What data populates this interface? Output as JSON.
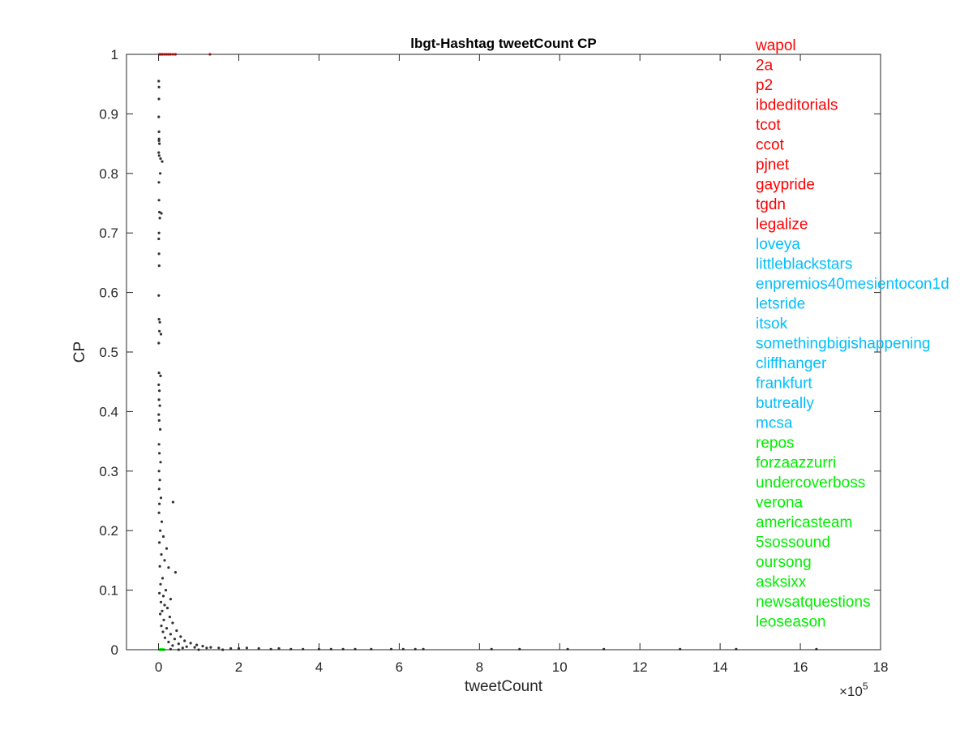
{
  "chart_data": {
    "type": "scatter",
    "title": "lbgt-Hashtag tweetCount CP",
    "xlabel": "tweetCount",
    "ylabel": "CP",
    "x_multiplier": "×10",
    "x_exponent": "5",
    "xlim": [
      -0.8,
      18
    ],
    "ylim": [
      0,
      1
    ],
    "x_ticks": [
      "0",
      "2",
      "4",
      "6",
      "8",
      "10",
      "12",
      "14",
      "16",
      "18"
    ],
    "y_ticks": [
      "0",
      "0.1",
      "0.2",
      "0.3",
      "0.4",
      "0.5",
      "0.6",
      "0.7",
      "0.8",
      "0.9",
      "1"
    ],
    "grid": false,
    "series": [
      {
        "color": "#333333",
        "points": [
          [
            0.005,
            0.955
          ],
          [
            0.01,
            0.945
          ],
          [
            0.008,
            0.925
          ],
          [
            0.005,
            0.895
          ],
          [
            0.01,
            0.87
          ],
          [
            0.012,
            0.858
          ],
          [
            0.01,
            0.855
          ],
          [
            0.02,
            0.85
          ],
          [
            0.005,
            0.835
          ],
          [
            0.015,
            0.83
          ],
          [
            0.05,
            0.825
          ],
          [
            0.09,
            0.82
          ],
          [
            0.04,
            0.8
          ],
          [
            0.008,
            0.785
          ],
          [
            0.01,
            0.755
          ],
          [
            0.02,
            0.735
          ],
          [
            0.07,
            0.733
          ],
          [
            0.03,
            0.725
          ],
          [
            0.01,
            0.7
          ],
          [
            0.005,
            0.69
          ],
          [
            0.01,
            0.665
          ],
          [
            0.015,
            0.645
          ],
          [
            0.005,
            0.595
          ],
          [
            0.01,
            0.555
          ],
          [
            0.03,
            0.55
          ],
          [
            0.02,
            0.535
          ],
          [
            0.06,
            0.53
          ],
          [
            0.005,
            0.515
          ],
          [
            0.01,
            0.465
          ],
          [
            0.05,
            0.46
          ],
          [
            0.005,
            0.445
          ],
          [
            0.02,
            0.435
          ],
          [
            0.01,
            0.42
          ],
          [
            0.03,
            0.41
          ],
          [
            0.005,
            0.395
          ],
          [
            0.015,
            0.385
          ],
          [
            0.04,
            0.37
          ],
          [
            0.01,
            0.345
          ],
          [
            0.02,
            0.33
          ],
          [
            0.05,
            0.315
          ],
          [
            0.01,
            0.3
          ],
          [
            0.03,
            0.285
          ],
          [
            0.015,
            0.27
          ],
          [
            0.06,
            0.255
          ],
          [
            0.02,
            0.245
          ],
          [
            0.36,
            0.248
          ],
          [
            0.01,
            0.23
          ],
          [
            0.08,
            0.215
          ],
          [
            0.04,
            0.2
          ],
          [
            0.12,
            0.19
          ],
          [
            0.02,
            0.18
          ],
          [
            0.2,
            0.17
          ],
          [
            0.07,
            0.16
          ],
          [
            0.15,
            0.15
          ],
          [
            0.03,
            0.14
          ],
          [
            0.42,
            0.13
          ],
          [
            0.25,
            0.138
          ],
          [
            0.1,
            0.12
          ],
          [
            0.05,
            0.11
          ],
          [
            0.18,
            0.1
          ],
          [
            0.02,
            0.095
          ],
          [
            0.12,
            0.09
          ],
          [
            0.3,
            0.085
          ],
          [
            0.06,
            0.08
          ],
          [
            0.15,
            0.075
          ],
          [
            0.22,
            0.07
          ],
          [
            0.09,
            0.065
          ],
          [
            0.04,
            0.06
          ],
          [
            0.28,
            0.055
          ],
          [
            0.13,
            0.05
          ],
          [
            0.35,
            0.045
          ],
          [
            0.07,
            0.04
          ],
          [
            0.2,
            0.036
          ],
          [
            0.45,
            0.032
          ],
          [
            0.11,
            0.03
          ],
          [
            0.3,
            0.026
          ],
          [
            0.55,
            0.022
          ],
          [
            0.16,
            0.02
          ],
          [
            0.4,
            0.018
          ],
          [
            0.65,
            0.015
          ],
          [
            0.25,
            0.013
          ],
          [
            0.8,
            0.011
          ],
          [
            0.5,
            0.01
          ],
          [
            0.95,
            0.008
          ],
          [
            0.35,
            0.007
          ],
          [
            1.1,
            0.006
          ],
          [
            0.7,
            0.005
          ],
          [
            1.3,
            0.004
          ],
          [
            0.9,
            0.004
          ],
          [
            1.5,
            0.003
          ],
          [
            1.2,
            0.003
          ],
          [
            1.8,
            0.002
          ],
          [
            2.0,
            0.002
          ],
          [
            2.2,
            0.003
          ],
          [
            2.5,
            0.002
          ],
          [
            2.8,
            0.001
          ],
          [
            3.0,
            0.002
          ],
          [
            3.3,
            0.001
          ],
          [
            3.6,
            0.001
          ],
          [
            4.0,
            0.001
          ],
          [
            4.3,
            0.001
          ],
          [
            4.6,
            0.001
          ],
          [
            4.9,
            0.001
          ],
          [
            5.3,
            0.001
          ],
          [
            5.8,
            0.001
          ],
          [
            6.1,
            0.001
          ],
          [
            6.4,
            0.001
          ],
          [
            6.6,
            0.001
          ],
          [
            8.3,
            0.001
          ],
          [
            9.0,
            0.001
          ],
          [
            10.2,
            0.001
          ],
          [
            11.1,
            0.001
          ],
          [
            13.0,
            0.001
          ],
          [
            14.4,
            0.001
          ],
          [
            16.4,
            0.001
          ],
          [
            0.5,
            0.0
          ],
          [
            1.0,
            0.0
          ],
          [
            1.6,
            0.0
          ],
          [
            0.3,
            0.001
          ],
          [
            0.6,
            0.003
          ]
        ]
      },
      {
        "color": "#ff0000",
        "points": [
          [
            0.02,
            1.0
          ],
          [
            0.06,
            1.0
          ],
          [
            0.1,
            1.0
          ],
          [
            0.15,
            1.0
          ],
          [
            0.2,
            1.0
          ],
          [
            0.25,
            1.0
          ],
          [
            0.3,
            1.0
          ],
          [
            0.36,
            1.0
          ],
          [
            0.42,
            1.0
          ],
          [
            1.28,
            1.0
          ]
        ]
      },
      {
        "color": "#00ff00",
        "points": [
          [
            0.02,
            0.0
          ],
          [
            0.05,
            0.0
          ],
          [
            0.08,
            0.0
          ],
          [
            0.1,
            0.001
          ],
          [
            0.12,
            0.0
          ],
          [
            0.14,
            0.0
          ],
          [
            0.06,
            0.001
          ],
          [
            0.09,
            0.0
          ],
          [
            0.11,
            0.0
          ],
          [
            0.04,
            0.0
          ]
        ]
      }
    ],
    "annotations": [
      {
        "text": "wapol",
        "color": "#ff0000"
      },
      {
        "text": "2a",
        "color": "#ff0000"
      },
      {
        "text": "p2",
        "color": "#ff0000"
      },
      {
        "text": "ibdeditorials",
        "color": "#ff0000"
      },
      {
        "text": "tcot",
        "color": "#ff0000"
      },
      {
        "text": "ccot",
        "color": "#ff0000"
      },
      {
        "text": "pjnet",
        "color": "#ff0000"
      },
      {
        "text": "gaypride",
        "color": "#ff0000"
      },
      {
        "text": "tgdn",
        "color": "#ff0000"
      },
      {
        "text": "legalize",
        "color": "#ff0000"
      },
      {
        "text": "loveya",
        "color": "#00bfff"
      },
      {
        "text": "littleblackstars",
        "color": "#00bfff"
      },
      {
        "text": "enpremios40mesientocon1d",
        "color": "#00bfff"
      },
      {
        "text": "letsride",
        "color": "#00bfff"
      },
      {
        "text": "itsok",
        "color": "#00bfff"
      },
      {
        "text": "somethingbigishappening",
        "color": "#00bfff"
      },
      {
        "text": "cliffhanger",
        "color": "#00bfff"
      },
      {
        "text": "frankfurt",
        "color": "#00bfff"
      },
      {
        "text": "butreally",
        "color": "#00bfff"
      },
      {
        "text": "mcsa",
        "color": "#00bfff"
      },
      {
        "text": "repos",
        "color": "#00ee00"
      },
      {
        "text": "forzaazzurri",
        "color": "#00ee00"
      },
      {
        "text": "undercoverboss",
        "color": "#00ee00"
      },
      {
        "text": "verona",
        "color": "#00ee00"
      },
      {
        "text": "americasteam",
        "color": "#00ee00"
      },
      {
        "text": "5sossound",
        "color": "#00ee00"
      },
      {
        "text": "oursong",
        "color": "#00ee00"
      },
      {
        "text": "asksixx",
        "color": "#00ee00"
      },
      {
        "text": "newsatquestions",
        "color": "#00ee00"
      },
      {
        "text": "leoseason",
        "color": "#00ee00"
      }
    ]
  }
}
